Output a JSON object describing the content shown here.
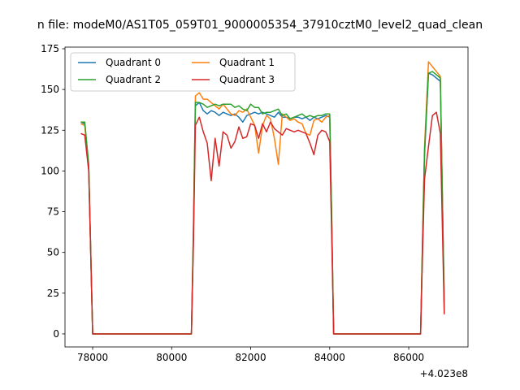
{
  "chart_data": {
    "type": "line",
    "title": "n file: modeM0/AS1T05_059T01_9000005354_37910cztM0_level2_quad_clean",
    "xlabel": "",
    "ylabel": "",
    "x_offset_label": "+4.023e8",
    "xlim": [
      77300,
      87500
    ],
    "ylim": [
      -8,
      176
    ],
    "x_ticks": [
      78000,
      80000,
      82000,
      84000,
      86000
    ],
    "y_ticks": [
      0,
      25,
      50,
      75,
      100,
      125,
      150,
      175
    ],
    "grid": false,
    "legend_placement": "top-left",
    "legend_columns": 2,
    "series": [
      {
        "name": "Quadrant 0",
        "color": "#1f77b4",
        "points": [
          [
            77700,
            130
          ],
          [
            77800,
            129
          ],
          [
            77900,
            103
          ],
          [
            78000,
            0
          ],
          [
            80500,
            0
          ],
          [
            80550,
            60
          ],
          [
            80600,
            140
          ],
          [
            80700,
            142
          ],
          [
            80800,
            137
          ],
          [
            80900,
            135
          ],
          [
            81000,
            137
          ],
          [
            81100,
            136
          ],
          [
            81200,
            134
          ],
          [
            81300,
            136
          ],
          [
            81400,
            135
          ],
          [
            81500,
            134
          ],
          [
            81600,
            135
          ],
          [
            81700,
            133
          ],
          [
            81800,
            130
          ],
          [
            81900,
            134
          ],
          [
            82000,
            135
          ],
          [
            82100,
            136
          ],
          [
            82200,
            135
          ],
          [
            82300,
            136
          ],
          [
            82400,
            135
          ],
          [
            82500,
            134
          ],
          [
            82600,
            133
          ],
          [
            82700,
            136
          ],
          [
            82800,
            133
          ],
          [
            82900,
            133
          ],
          [
            83000,
            132
          ],
          [
            83100,
            133
          ],
          [
            83200,
            133
          ],
          [
            83300,
            132
          ],
          [
            83400,
            133
          ],
          [
            83500,
            131
          ],
          [
            83600,
            133
          ],
          [
            83700,
            132
          ],
          [
            83800,
            133
          ],
          [
            83900,
            134
          ],
          [
            84000,
            133
          ],
          [
            84050,
            70
          ],
          [
            84100,
            0
          ],
          [
            86300,
            0
          ],
          [
            86350,
            55
          ],
          [
            86400,
            110
          ],
          [
            86500,
            160
          ],
          [
            86600,
            159
          ],
          [
            86700,
            157
          ],
          [
            86800,
            155
          ],
          [
            86900,
            20
          ]
        ]
      },
      {
        "name": "Quadrant 1",
        "color": "#ff7f0e",
        "points": [
          [
            77700,
            129
          ],
          [
            77800,
            128
          ],
          [
            77900,
            102
          ],
          [
            78000,
            0
          ],
          [
            80500,
            0
          ],
          [
            80550,
            65
          ],
          [
            80600,
            146
          ],
          [
            80700,
            148
          ],
          [
            80800,
            144
          ],
          [
            80900,
            144
          ],
          [
            81000,
            142
          ],
          [
            81100,
            140
          ],
          [
            81200,
            138
          ],
          [
            81300,
            141
          ],
          [
            81400,
            138
          ],
          [
            81500,
            135
          ],
          [
            81600,
            134
          ],
          [
            81700,
            137
          ],
          [
            81800,
            136
          ],
          [
            81900,
            138
          ],
          [
            82000,
            133
          ],
          [
            82100,
            128
          ],
          [
            82200,
            111
          ],
          [
            82300,
            128
          ],
          [
            82400,
            134
          ],
          [
            82500,
            132
          ],
          [
            82600,
            120
          ],
          [
            82700,
            104
          ],
          [
            82800,
            135
          ],
          [
            82900,
            133
          ],
          [
            83000,
            131
          ],
          [
            83100,
            132
          ],
          [
            83200,
            130
          ],
          [
            83300,
            129
          ],
          [
            83400,
            123
          ],
          [
            83500,
            122
          ],
          [
            83600,
            131
          ],
          [
            83700,
            132
          ],
          [
            83800,
            130
          ],
          [
            83900,
            133
          ],
          [
            84000,
            134
          ],
          [
            84050,
            70
          ],
          [
            84100,
            0
          ],
          [
            86300,
            0
          ],
          [
            86350,
            60
          ],
          [
            86400,
            115
          ],
          [
            86500,
            167
          ],
          [
            86600,
            164
          ],
          [
            86700,
            161
          ],
          [
            86800,
            158
          ],
          [
            86900,
            15
          ]
        ]
      },
      {
        "name": "Quadrant 2",
        "color": "#2ca02c",
        "points": [
          [
            77700,
            130
          ],
          [
            77800,
            130
          ],
          [
            77900,
            104
          ],
          [
            78000,
            0
          ],
          [
            80500,
            0
          ],
          [
            80550,
            62
          ],
          [
            80600,
            142
          ],
          [
            80700,
            142
          ],
          [
            80800,
            141
          ],
          [
            80900,
            139
          ],
          [
            81000,
            140
          ],
          [
            81100,
            141
          ],
          [
            81200,
            140
          ],
          [
            81300,
            141
          ],
          [
            81400,
            141
          ],
          [
            81500,
            141
          ],
          [
            81600,
            139
          ],
          [
            81700,
            140
          ],
          [
            81800,
            138
          ],
          [
            81900,
            137
          ],
          [
            82000,
            141
          ],
          [
            82100,
            139
          ],
          [
            82200,
            139
          ],
          [
            82300,
            135
          ],
          [
            82400,
            136
          ],
          [
            82500,
            136
          ],
          [
            82600,
            137
          ],
          [
            82700,
            138
          ],
          [
            82800,
            134
          ],
          [
            82900,
            135
          ],
          [
            83000,
            132
          ],
          [
            83100,
            133
          ],
          [
            83200,
            134
          ],
          [
            83300,
            135
          ],
          [
            83400,
            133
          ],
          [
            83500,
            134
          ],
          [
            83600,
            133
          ],
          [
            83700,
            134
          ],
          [
            83800,
            134
          ],
          [
            83900,
            135
          ],
          [
            84000,
            135
          ],
          [
            84050,
            72
          ],
          [
            84100,
            0
          ],
          [
            86300,
            0
          ],
          [
            86350,
            58
          ],
          [
            86400,
            112
          ],
          [
            86500,
            160
          ],
          [
            86600,
            161
          ],
          [
            86700,
            159
          ],
          [
            86800,
            157
          ],
          [
            86900,
            13
          ]
        ]
      },
      {
        "name": "Quadrant 3",
        "color": "#d62728",
        "points": [
          [
            77700,
            123
          ],
          [
            77800,
            122
          ],
          [
            77900,
            100
          ],
          [
            78000,
            0
          ],
          [
            80500,
            0
          ],
          [
            80550,
            55
          ],
          [
            80600,
            128
          ],
          [
            80700,
            133
          ],
          [
            80800,
            124
          ],
          [
            80900,
            117
          ],
          [
            81000,
            94
          ],
          [
            81100,
            120
          ],
          [
            81200,
            103
          ],
          [
            81300,
            124
          ],
          [
            81400,
            122
          ],
          [
            81500,
            114
          ],
          [
            81600,
            118
          ],
          [
            81700,
            127
          ],
          [
            81800,
            120
          ],
          [
            81900,
            121
          ],
          [
            82000,
            129
          ],
          [
            82100,
            128
          ],
          [
            82200,
            120
          ],
          [
            82300,
            129
          ],
          [
            82400,
            124
          ],
          [
            82500,
            130
          ],
          [
            82600,
            126
          ],
          [
            82700,
            124
          ],
          [
            82800,
            122
          ],
          [
            82900,
            126
          ],
          [
            83000,
            125
          ],
          [
            83100,
            124
          ],
          [
            83200,
            125
          ],
          [
            83300,
            124
          ],
          [
            83400,
            123
          ],
          [
            83500,
            117
          ],
          [
            83600,
            110
          ],
          [
            83700,
            122
          ],
          [
            83800,
            125
          ],
          [
            83900,
            124
          ],
          [
            84000,
            118
          ],
          [
            84050,
            60
          ],
          [
            84100,
            0
          ],
          [
            86300,
            0
          ],
          [
            86350,
            50
          ],
          [
            86400,
            95
          ],
          [
            86500,
            115
          ],
          [
            86600,
            134
          ],
          [
            86700,
            136
          ],
          [
            86800,
            123
          ],
          [
            86900,
            12
          ]
        ]
      }
    ]
  }
}
